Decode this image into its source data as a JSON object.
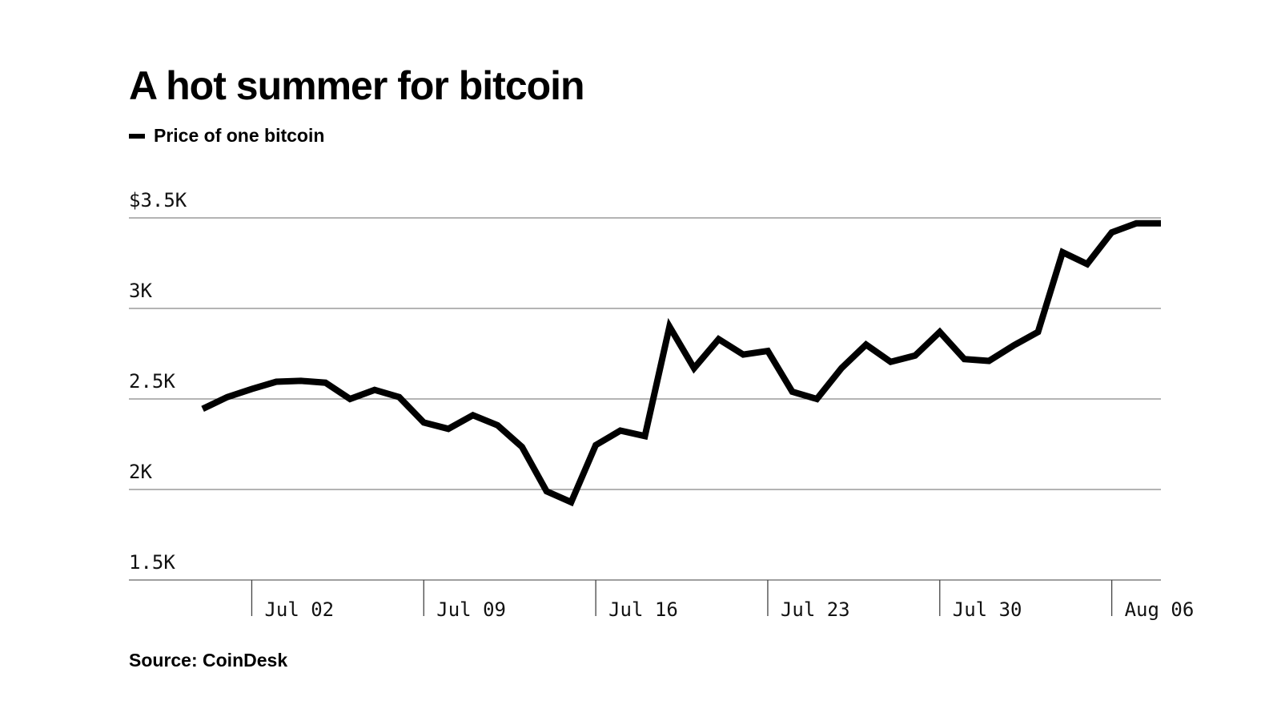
{
  "title": "A hot summer for bitcoin",
  "legend": {
    "label": "Price of one bitcoin"
  },
  "source": "Source: CoinDesk",
  "colors": {
    "line": "#000000",
    "grid": "#888888",
    "background": "#ffffff"
  },
  "chart_data": {
    "type": "line",
    "title": "A hot summer for bitcoin",
    "xlabel": "",
    "ylabel": "",
    "ylim": [
      1500,
      3500
    ],
    "xlim": [
      "2017-06-27",
      "2017-08-08"
    ],
    "grid": "horizontal",
    "y_ticks": [
      3500,
      3000,
      2500,
      2000,
      1500
    ],
    "y_tick_labels": [
      "$3.5K",
      "3K",
      "2.5K",
      "2K",
      "1.5K"
    ],
    "x_ticks": [
      "2017-07-02",
      "2017-07-09",
      "2017-07-16",
      "2017-07-23",
      "2017-07-30",
      "2017-08-06"
    ],
    "x_tick_labels": [
      "Jul 02",
      "Jul 09",
      "Jul 16",
      "Jul 23",
      "Jul 30",
      "Aug 06"
    ],
    "series": [
      {
        "name": "Price of one bitcoin",
        "x": [
          "2017-06-30",
          "2017-07-01",
          "2017-07-02",
          "2017-07-03",
          "2017-07-04",
          "2017-07-05",
          "2017-07-06",
          "2017-07-07",
          "2017-07-08",
          "2017-07-09",
          "2017-07-10",
          "2017-07-11",
          "2017-07-12",
          "2017-07-13",
          "2017-07-14",
          "2017-07-15",
          "2017-07-16",
          "2017-07-17",
          "2017-07-18",
          "2017-07-19",
          "2017-07-20",
          "2017-07-21",
          "2017-07-22",
          "2017-07-23",
          "2017-07-24",
          "2017-07-25",
          "2017-07-26",
          "2017-07-27",
          "2017-07-28",
          "2017-07-29",
          "2017-07-30",
          "2017-07-31",
          "2017-08-01",
          "2017-08-02",
          "2017-08-03",
          "2017-08-04",
          "2017-08-05",
          "2017-08-06",
          "2017-08-07",
          "2017-08-08"
        ],
        "values": [
          2445,
          2510,
          2555,
          2595,
          2600,
          2590,
          2500,
          2550,
          2510,
          2370,
          2335,
          2410,
          2355,
          2235,
          1990,
          1930,
          2245,
          2325,
          2295,
          2900,
          2670,
          2830,
          2745,
          2765,
          2540,
          2500,
          2670,
          2800,
          2705,
          2740,
          2870,
          2720,
          2710,
          2795,
          2870,
          3310,
          3245,
          3420,
          3470,
          3470
        ]
      }
    ]
  }
}
